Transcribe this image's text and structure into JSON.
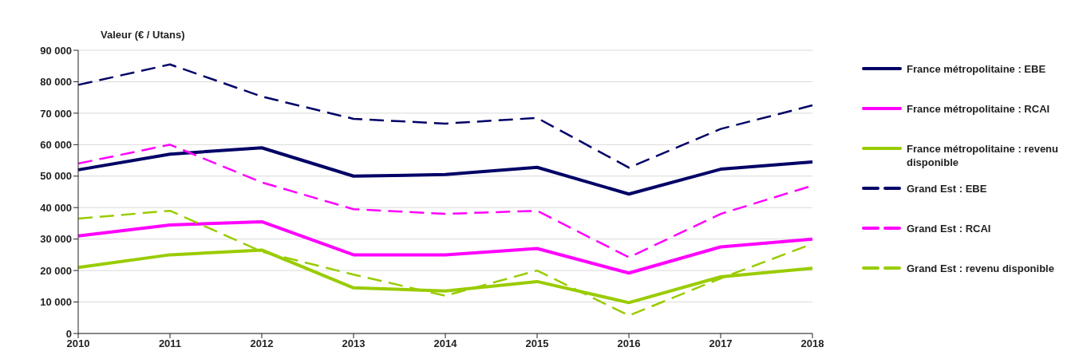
{
  "chart_data": {
    "type": "line",
    "ylabel": "Valeur (€ / Utans)",
    "categories": [
      "2010",
      "2011",
      "2012",
      "2013",
      "2014",
      "2015",
      "2016",
      "2017",
      "2018"
    ],
    "series": [
      {
        "name": "France métropolitaine : EBE",
        "color": "#000066",
        "line_style": "solid",
        "values": [
          52000,
          57000,
          59000,
          50000,
          50500,
          52800,
          44300,
          52200,
          54500
        ]
      },
      {
        "name": "France métropolitaine : RCAI",
        "color": "#ff00ff",
        "line_style": "solid",
        "values": [
          31000,
          34500,
          35500,
          25000,
          25000,
          27000,
          19200,
          27500,
          30000
        ]
      },
      {
        "name": "France métropolitaine : revenu disponible",
        "color": "#99cc00",
        "line_style": "solid",
        "values": [
          21000,
          25000,
          26500,
          14500,
          13500,
          16500,
          9800,
          18000,
          20700
        ]
      },
      {
        "name": "Grand Est : EBE",
        "color": "#000066",
        "line_style": "dashed",
        "values": [
          79000,
          85500,
          75300,
          68200,
          66700,
          68500,
          52700,
          65000,
          72500
        ]
      },
      {
        "name": "Grand Est : RCAI",
        "color": "#ff00ff",
        "line_style": "dashed",
        "values": [
          54000,
          60000,
          48000,
          39500,
          38000,
          39000,
          24200,
          38000,
          47000
        ]
      },
      {
        "name": "Grand Est : revenu disponible",
        "color": "#99cc00",
        "line_style": "dashed",
        "values": [
          36500,
          39000,
          26000,
          18700,
          12000,
          20000,
          5700,
          17500,
          28500
        ]
      }
    ],
    "ylim": [
      0,
      90000
    ],
    "yticks": [
      {
        "value": 0,
        "label": "0"
      },
      {
        "value": 10000,
        "label": "10 000"
      },
      {
        "value": 20000,
        "label": "20 000"
      },
      {
        "value": 30000,
        "label": "30 000"
      },
      {
        "value": 40000,
        "label": "40 000"
      },
      {
        "value": 50000,
        "label": "50 000"
      },
      {
        "value": 60000,
        "label": "60 000"
      },
      {
        "value": 70000,
        "label": "70 000"
      },
      {
        "value": 80000,
        "label": "80 000"
      },
      {
        "value": 90000,
        "label": "90 000"
      }
    ],
    "grid": "y",
    "legend": "right",
    "marker": "none"
  }
}
